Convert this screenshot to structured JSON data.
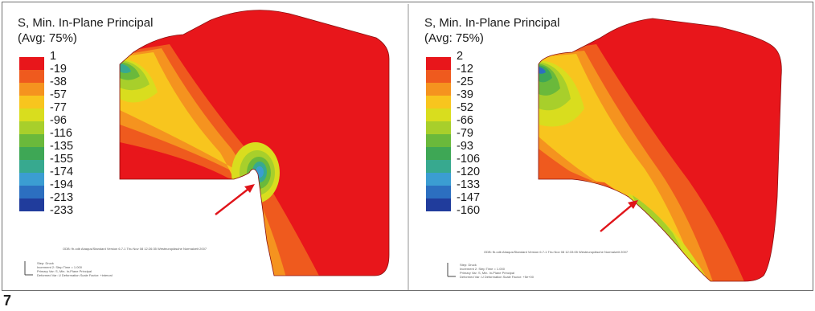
{
  "figure_label": "7",
  "colors": [
    "#e8161b",
    "#ef5a1e",
    "#f5931f",
    "#f8c51e",
    "#d9dd1e",
    "#a8cf2b",
    "#6ab93b",
    "#3ea755",
    "#37a98f",
    "#3b9dd2",
    "#2c6fc0",
    "#203c9c"
  ],
  "left": {
    "title_line1": "S, Min. In-Plane Principal",
    "title_line2": "(Avg: 75%)",
    "legend_values": [
      "1",
      "-19",
      "-38",
      "-57",
      "-77",
      "-96",
      "-116",
      "-135",
      "-155",
      "-174",
      "-194",
      "-213",
      "-233"
    ],
    "info_main": "ODB: fh.odb    Abaqus/Standard Version 6.7-1    Thu Nov 08 12:26:35 Westeuropäische Normalzeit 2007",
    "info_step": "Step: Druck",
    "info_increment": "Increment    2: Step Time =    1.000",
    "info_primary": "Primary Var: S, Min. In-Plane Principal",
    "info_deformed": "Deformed Var: U   Deformation Scale Factor: +interval"
  },
  "right": {
    "title_line1": "S, Min. In-Plane Principal",
    "title_line2": "(Avg: 75%)",
    "legend_values": [
      "2",
      "-12",
      "-25",
      "-39",
      "-52",
      "-66",
      "-79",
      "-93",
      "-106",
      "-120",
      "-133",
      "-147",
      "-160"
    ],
    "info_main": "ODB: fb.odb    Abaqus/Standard Version 6.7-1    Thu Nov 08 12:33:05 Westeuropäische Normalzeit 2007",
    "info_step": "Step: Druck",
    "info_increment": "Increment    2: Step Time =    1.000",
    "info_primary": "Primary Var: S, Min. In-Plane Principal",
    "info_deformed": "Deformed Var: U   Deformation Scale Factor: +5e+00"
  }
}
